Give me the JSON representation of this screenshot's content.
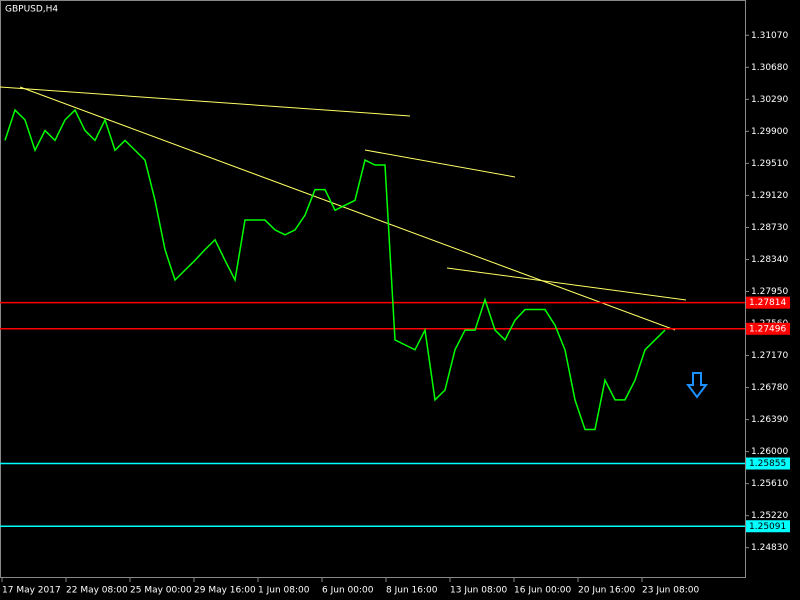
{
  "chart_data": {
    "type": "line",
    "title": "GBPUSD,H4",
    "color": "#00ff00",
    "values": [
      1.2979,
      1.3016,
      1.3004,
      1.2967,
      1.2991,
      1.2979,
      1.3004,
      1.3016,
      1.2991,
      1.2979,
      1.3004,
      1.2967,
      1.2979,
      1.2967,
      1.2955,
      1.2906,
      1.2846,
      1.2809,
      1.2821,
      1.2833,
      1.2846,
      1.2858,
      1.2833,
      1.2809,
      1.2882,
      1.2882,
      1.2882,
      1.287,
      1.2864,
      1.287,
      1.2888,
      1.2919,
      1.2919,
      1.2894,
      1.29,
      1.2906,
      1.2955,
      1.2949,
      1.2949,
      1.2736,
      1.273,
      1.2724,
      1.2748,
      1.2663,
      1.2675,
      1.2724,
      1.2748,
      1.2748,
      1.2785,
      1.2748,
      1.2736,
      1.276,
      1.2773,
      1.2773,
      1.2773,
      1.2754,
      1.2724,
      1.2663,
      1.2627,
      1.2627,
      1.2687,
      1.2663,
      1.2663,
      1.2687,
      1.2724,
      1.2736,
      1.2748
    ],
    "x_labels": [
      "17 May 2017",
      "22 May 08:00",
      "25 May 00:00",
      "29 May 16:00",
      "1 Jun 08:00",
      "6 Jun 00:00",
      "8 Jun 16:00",
      "13 Jun 08:00",
      "16 Jun 00:00",
      "20 Jun 16:00",
      "23 Jun 08:00"
    ],
    "ylim": [
      1.2468,
      1.315
    ],
    "yticks": [
      {
        "value": 1.3107,
        "label": "1.31070"
      },
      {
        "value": 1.3068,
        "label": "1.30680"
      },
      {
        "value": 1.3029,
        "label": "1.30290"
      },
      {
        "value": 1.299,
        "label": "1.29900"
      },
      {
        "value": 1.2951,
        "label": "1.29510"
      },
      {
        "value": 1.2912,
        "label": "1.29120"
      },
      {
        "value": 1.2873,
        "label": "1.28730"
      },
      {
        "value": 1.2834,
        "label": "1.28340"
      },
      {
        "value": 1.2795,
        "label": "1.27950"
      },
      {
        "value": 1.2756,
        "label": "1.27560"
      },
      {
        "value": 1.2717,
        "label": "1.27170"
      },
      {
        "value": 1.2678,
        "label": "1.26780"
      },
      {
        "value": 1.2639,
        "label": "1.26390"
      },
      {
        "value": 1.26,
        "label": "1.26000"
      },
      {
        "value": 1.2561,
        "label": "1.25610"
      },
      {
        "value": 1.2522,
        "label": "1.25220"
      },
      {
        "value": 1.2483,
        "label": "1.24830"
      }
    ],
    "levels": [
      {
        "value": 1.27814,
        "label": "1.27814",
        "color": "#ff0000"
      },
      {
        "value": 1.27496,
        "label": "1.27496",
        "color": "#ff0000"
      },
      {
        "value": 1.25855,
        "label": "1.25855",
        "color": "#00ffff"
      },
      {
        "value": 1.25091,
        "label": "1.25091",
        "color": "#00ffff"
      }
    ]
  }
}
